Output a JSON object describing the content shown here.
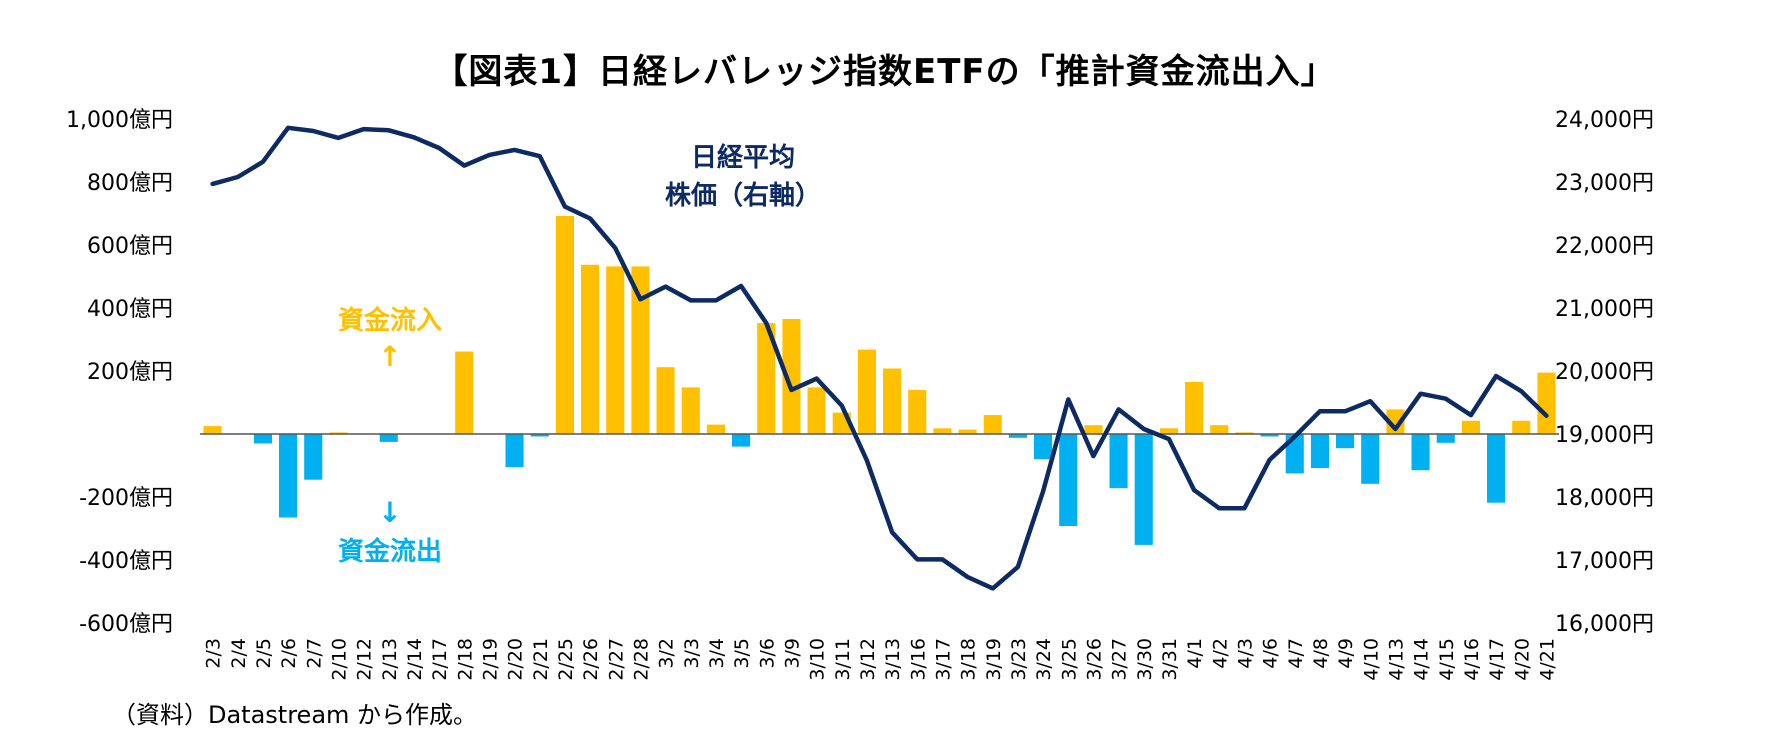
{
  "source_note": "（資料）Datastream から作成。",
  "chart_data": {
    "type": "bar+line",
    "title": "【図表1】日経レバレッジ指数ETFの「推計資金流出入」",
    "categories": [
      "2/3",
      "2/4",
      "2/5",
      "2/6",
      "2/7",
      "2/10",
      "2/12",
      "2/13",
      "2/14",
      "2/17",
      "2/18",
      "2/19",
      "2/20",
      "2/21",
      "2/25",
      "2/26",
      "2/27",
      "2/28",
      "3/2",
      "3/3",
      "3/4",
      "3/5",
      "3/6",
      "3/9",
      "3/10",
      "3/11",
      "3/12",
      "3/13",
      "3/16",
      "3/17",
      "3/18",
      "3/19",
      "3/23",
      "3/24",
      "3/25",
      "3/26",
      "3/27",
      "3/30",
      "3/31",
      "4/1",
      "4/2",
      "4/3",
      "4/6",
      "4/7",
      "4/8",
      "4/9",
      "4/10",
      "4/13",
      "4/14",
      "4/15",
      "4/16",
      "4/17",
      "4/20",
      "4/21"
    ],
    "series": [
      {
        "axis": "left",
        "type": "bar",
        "values": [
          25,
          0,
          -30,
          -265,
          -145,
          5,
          0,
          -25,
          0,
          0,
          262,
          0,
          -105,
          -8,
          692,
          537,
          532,
          532,
          212,
          148,
          30,
          -40,
          352,
          365,
          148,
          68,
          268,
          208,
          140,
          18,
          14,
          60,
          -12,
          -80,
          -292,
          28,
          -172,
          -352,
          18,
          165,
          28,
          5,
          -8,
          -125,
          -108,
          -45,
          -158,
          78,
          -115,
          -28,
          42,
          -218,
          42,
          195
        ],
        "positive_color": "#ffc000",
        "negative_color": "#00b0f0"
      },
      {
        "name": "日経平均株価（右軸）",
        "axis": "right",
        "type": "line",
        "color": "#0d2a62",
        "values": [
          22970,
          23080,
          23320,
          23860,
          23810,
          23700,
          23840,
          23820,
          23710,
          23540,
          23260,
          23430,
          23510,
          23410,
          22610,
          22420,
          21950,
          21140,
          21340,
          21120,
          21120,
          21350,
          20760,
          19700,
          19880,
          19450,
          18580,
          17440,
          17010,
          17010,
          16730,
          16550,
          16890,
          18090,
          19550,
          18650,
          19390,
          19080,
          18920,
          18110,
          17820,
          17820,
          18590,
          18960,
          19360,
          19360,
          19520,
          19080,
          19640,
          19560,
          19300,
          19920,
          19680,
          19290
        ]
      }
    ],
    "annotations": {
      "inflow": "資金流入",
      "inflow_arrow": "↑",
      "outflow": "資金流出",
      "outflow_arrow": "↓",
      "nikkei_line1": "日経平均",
      "nikkei_line2": "株価（右軸）"
    },
    "left_axis": {
      "min": -600,
      "max": 1000,
      "step": 200,
      "tick_labels": [
        "-600億円",
        "-400億円",
        "-200億円",
        "",
        "200億円",
        "400億円",
        "600億円",
        "800億円",
        "1,000億円"
      ]
    },
    "right_axis": {
      "min": 16000,
      "max": 24000,
      "step": 1000,
      "tick_labels": [
        "16,000円",
        "17,000円",
        "18,000円",
        "19,000円",
        "20,000円",
        "21,000円",
        "22,000円",
        "23,000円",
        "24,000円"
      ]
    },
    "gridlines": false,
    "legend": "none"
  }
}
